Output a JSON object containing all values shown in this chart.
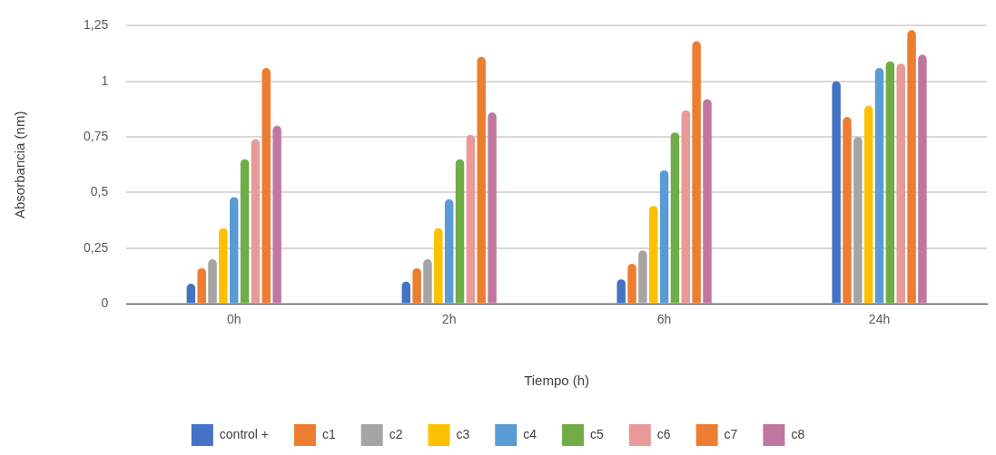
{
  "chart_data": {
    "type": "bar",
    "xlabel": "Tiempo (h)",
    "ylabel": "Absorbancia (nm)",
    "categories": [
      "0h",
      "2h",
      "6h",
      "24h"
    ],
    "series": [
      {
        "name": "control +",
        "color": "#4472c4",
        "values": [
          0.09,
          0.1,
          0.11,
          1.0
        ]
      },
      {
        "name": "c1",
        "color": "#ed7d31",
        "values": [
          0.16,
          0.16,
          0.18,
          0.84
        ]
      },
      {
        "name": "c2",
        "color": "#a5a5a5",
        "values": [
          0.2,
          0.2,
          0.24,
          0.75
        ]
      },
      {
        "name": "c3",
        "color": "#ffc000",
        "values": [
          0.34,
          0.34,
          0.44,
          0.89
        ]
      },
      {
        "name": "c4",
        "color": "#5b9bd5",
        "values": [
          0.48,
          0.47,
          0.6,
          1.06
        ]
      },
      {
        "name": "c5",
        "color": "#70ad47",
        "values": [
          0.65,
          0.65,
          0.77,
          1.09
        ]
      },
      {
        "name": "c6",
        "color": "#e99a98",
        "values": [
          0.74,
          0.76,
          0.87,
          1.08
        ]
      },
      {
        "name": "c7",
        "color": "#ed7d31",
        "values": [
          1.06,
          1.11,
          1.18,
          1.23
        ]
      },
      {
        "name": "c8",
        "color": "#c0779f",
        "values": [
          0.8,
          0.86,
          0.92,
          1.12
        ]
      }
    ],
    "ylim": [
      0,
      1.25
    ],
    "yticks": [
      0,
      {
        "value": 0.25,
        "label": "0,25"
      },
      {
        "value": 0.5,
        "label": "0,5"
      },
      {
        "value": 0.75,
        "label": "0,75"
      },
      1,
      {
        "value": 1.25,
        "label": "1,25"
      }
    ],
    "grid": "y",
    "legend": "bottom"
  }
}
